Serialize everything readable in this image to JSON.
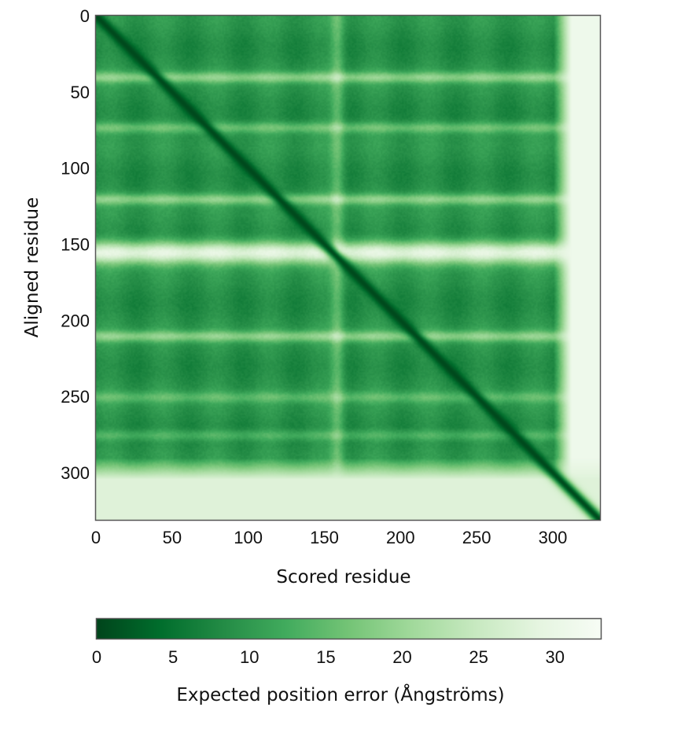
{
  "chart_data": {
    "type": "heatmap",
    "title": "",
    "xlabel": "Scored residue",
    "ylabel": "Aligned residue",
    "n_residues": 331,
    "xlim": [
      0,
      331
    ],
    "ylim": [
      331,
      0
    ],
    "x_ticks": [
      0,
      50,
      100,
      150,
      200,
      250,
      300
    ],
    "y_ticks": [
      0,
      50,
      100,
      150,
      200,
      250,
      300
    ],
    "colorbar": {
      "label": "Expected position error (Ångströms)",
      "range": [
        0,
        33
      ],
      "ticks": [
        0,
        5,
        10,
        15,
        20,
        25,
        30
      ],
      "colormap": [
        "#00441b",
        "#006d2c",
        "#238b45",
        "#41ab5d",
        "#74c476",
        "#a1d99b",
        "#c7e9c0",
        "#e5f5e0",
        "#f7fcf5"
      ]
    },
    "structure": {
      "diagonal_error": 0.5,
      "core_error": 9,
      "core_domain_end": 300,
      "c_terminal_tail_error": 31,
      "high_error_row_bands": [
        {
          "center": 40,
          "width": 4,
          "error": 18
        },
        {
          "center": 73,
          "width": 4,
          "error": 16
        },
        {
          "center": 120,
          "width": 4,
          "error": 18
        },
        {
          "center": 155,
          "width": 8,
          "error": 29
        },
        {
          "center": 210,
          "width": 4,
          "error": 18
        },
        {
          "center": 250,
          "width": 4,
          "error": 14
        },
        {
          "center": 275,
          "width": 4,
          "error": 14
        }
      ],
      "high_error_column_bands": [
        {
          "center": 158,
          "width": 5,
          "error": 17
        }
      ],
      "low_confidence_rows": {
        "from": 290,
        "to": 331,
        "error": 28
      }
    }
  }
}
